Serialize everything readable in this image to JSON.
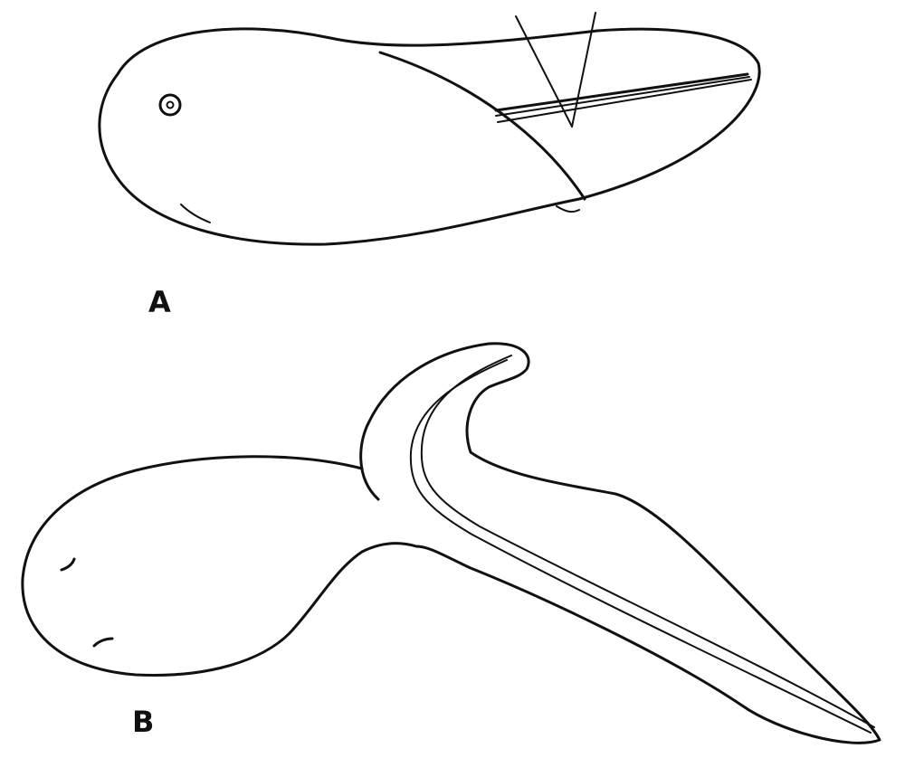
{
  "panels": [
    {
      "label": "A"
    },
    {
      "label": "B"
    }
  ],
  "colors": {
    "ink": "#111111",
    "paper": "#ffffff"
  }
}
